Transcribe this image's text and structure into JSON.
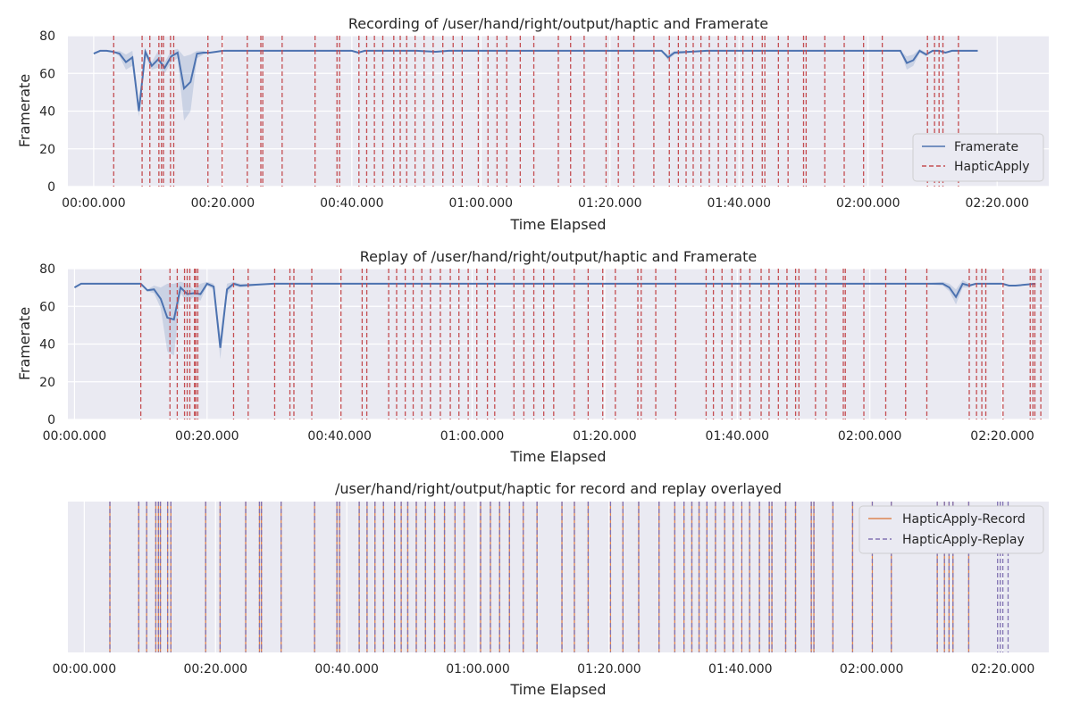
{
  "chart_data": [
    {
      "type": "line",
      "title": "Recording of /user/hand/right/output/haptic and Framerate",
      "xlabel": "Time Elapsed",
      "ylabel": "Framerate",
      "x_unit": "seconds",
      "xlim": [
        -4,
        148
      ],
      "ylim": [
        0,
        80
      ],
      "xticks": [
        0,
        20,
        40,
        60,
        80,
        100,
        120,
        140
      ],
      "xtick_labels": [
        "00:00.000",
        "00:20.000",
        "00:40.000",
        "01:00.000",
        "01:20.000",
        "01:40.000",
        "02:00.000",
        "02:20.000"
      ],
      "yticks": [
        0,
        20,
        40,
        60,
        80
      ],
      "legend": {
        "position": "right",
        "entries": [
          "Framerate",
          "HapticApply"
        ]
      },
      "grid": true,
      "series": [
        {
          "name": "Framerate",
          "color": "#4c72b0",
          "x": [
            0,
            1,
            2,
            3,
            4,
            5,
            6,
            7,
            8,
            9,
            10,
            11,
            12,
            13,
            14,
            15,
            16,
            17,
            18,
            19,
            20,
            21,
            22,
            25,
            30,
            35,
            40,
            41,
            42,
            45,
            50,
            53,
            55,
            60,
            65,
            70,
            75,
            80,
            85,
            88,
            89,
            90,
            95,
            100,
            110,
            120,
            125,
            126,
            127,
            128,
            129,
            130,
            131,
            132,
            133,
            134,
            135,
            136,
            137
          ],
          "y": [
            70.5,
            72,
            72,
            71.5,
            70.5,
            66,
            68.5,
            40,
            71.5,
            64,
            67.5,
            63,
            69,
            71,
            52,
            55.5,
            70.5,
            71,
            71,
            71.5,
            72,
            72,
            72,
            72,
            72,
            72,
            72,
            71,
            72,
            72,
            72,
            71.5,
            72,
            72,
            72,
            72,
            72,
            72,
            72,
            72,
            68.5,
            71,
            72,
            72,
            72,
            72,
            72,
            65.5,
            67,
            72,
            70,
            72,
            72,
            71,
            72,
            72,
            72,
            72,
            72
          ],
          "band_low": [
            70.5,
            72,
            72,
            71.5,
            69,
            62,
            64,
            37,
            69,
            62,
            63,
            60,
            66,
            68,
            35,
            40,
            68,
            70,
            71,
            71.5,
            72,
            72,
            72,
            72,
            72,
            72,
            72,
            71,
            72,
            72,
            72,
            71,
            72,
            72,
            72,
            72,
            72,
            72,
            72,
            72,
            67,
            70,
            72,
            72,
            72,
            72,
            72,
            62,
            64,
            71,
            69,
            72,
            72,
            71,
            72,
            72,
            72,
            72,
            72
          ],
          "band_high": [
            70.5,
            72,
            72,
            71.5,
            72,
            70,
            72,
            43,
            73,
            66,
            72,
            66,
            72,
            73,
            69,
            70,
            72,
            72,
            71,
            71.5,
            72,
            72,
            72,
            72,
            72,
            72,
            72,
            71,
            72,
            72,
            72,
            72,
            72,
            72,
            72,
            72,
            72,
            72,
            72,
            72,
            70,
            72,
            72,
            72,
            72,
            72,
            72,
            69,
            70,
            73,
            71,
            72,
            72,
            71,
            72,
            72,
            72,
            72,
            72
          ]
        },
        {
          "name": "HapticApply",
          "style": "vline-dashed",
          "color": "#c44e52",
          "x": [
            3.1,
            7.5,
            8.7,
            10.1,
            10.5,
            10.8,
            11.9,
            12.4,
            17.7,
            19.9,
            23.8,
            25.9,
            26.2,
            29.2,
            34.3,
            37.7,
            38.1,
            41.1,
            42.3,
            43.5,
            44.8,
            46.5,
            47.5,
            48.5,
            49.8,
            51.2,
            52.6,
            54.1,
            55.7,
            57.1,
            59.6,
            61.1,
            62.5,
            64.0,
            66.1,
            68.2,
            72.0,
            73.9,
            76.0,
            79.4,
            81.3,
            83.7,
            86.8,
            89.2,
            90.6,
            91.8,
            92.9,
            94.1,
            95.4,
            96.8,
            98.1,
            99.4,
            100.6,
            102.1,
            103.6,
            104.0,
            106.1,
            107.6,
            110.0,
            110.4,
            113.3,
            116.3,
            119.3,
            122.2,
            129.2,
            130.3,
            131.0,
            131.6,
            134.0
          ]
        }
      ]
    },
    {
      "type": "line",
      "title": "Replay of /user/hand/right/output/haptic and Framerate",
      "xlabel": "Time Elapsed",
      "ylabel": "Framerate",
      "x_unit": "seconds",
      "xlim": [
        -1,
        147
      ],
      "ylim": [
        0,
        80
      ],
      "xticks": [
        0,
        20,
        40,
        60,
        80,
        100,
        120,
        140
      ],
      "xtick_labels": [
        "00:00.000",
        "00:20.000",
        "00:40.000",
        "01:00.000",
        "01:20.000",
        "01:40.000",
        "02:00.000",
        "02:20.000"
      ],
      "yticks": [
        0,
        20,
        40,
        60,
        80
      ],
      "grid": true,
      "series": [
        {
          "name": "Framerate",
          "color": "#4c72b0",
          "x": [
            0,
            1,
            2,
            3,
            5,
            8,
            9,
            10,
            11,
            12,
            13,
            14,
            15,
            16,
            17,
            18,
            19,
            20,
            21,
            22,
            23,
            24,
            25,
            30,
            35,
            40,
            50,
            60,
            70,
            80,
            90,
            100,
            110,
            120,
            128,
            131,
            132,
            133,
            134,
            135,
            136,
            137,
            138,
            140,
            141,
            142,
            145
          ],
          "y": [
            70,
            72,
            72,
            72,
            72,
            72,
            72,
            72,
            68.5,
            69,
            64,
            54,
            53,
            70,
            66.5,
            67,
            66.5,
            72,
            70.5,
            38,
            69,
            72,
            71,
            72,
            72,
            72,
            72,
            72,
            72,
            72,
            72,
            72,
            72,
            72,
            72,
            72,
            70,
            65,
            72,
            71,
            72,
            72,
            72,
            72,
            71,
            71,
            72
          ],
          "band_low": [
            70,
            72,
            72,
            72,
            72,
            72,
            72,
            72,
            68,
            67,
            59,
            36,
            34,
            67,
            62,
            65,
            63,
            71,
            69,
            32,
            66,
            71,
            70,
            72,
            72,
            72,
            72,
            72,
            72,
            72,
            72,
            72,
            72,
            72,
            72,
            71,
            68,
            61,
            70,
            70,
            72,
            72,
            72,
            72,
            71,
            71,
            72
          ],
          "band_high": [
            70,
            72,
            72,
            72,
            72,
            72,
            72,
            72,
            69,
            71,
            70,
            72,
            72,
            73,
            72,
            69,
            72,
            73,
            72,
            44,
            72,
            73,
            72,
            72,
            72,
            72,
            72,
            72,
            72,
            72,
            72,
            72,
            72,
            72,
            72,
            73,
            72,
            69,
            74,
            72,
            72,
            72,
            72,
            72,
            71,
            71,
            72
          ]
        },
        {
          "name": "HapticApply",
          "style": "vline-dashed",
          "color": "#c44e52",
          "x": [
            10.0,
            14.4,
            15.5,
            16.6,
            17.0,
            17.4,
            18.1,
            18.3,
            18.6,
            24.0,
            26.2,
            30.2,
            32.5,
            33.1,
            35.8,
            40.2,
            43.4,
            44.1,
            47.4,
            48.6,
            49.9,
            51.1,
            52.4,
            53.7,
            55.2,
            56.7,
            58.0,
            59.4,
            60.7,
            62.3,
            63.4,
            66.3,
            67.8,
            69.3,
            70.8,
            72.3,
            75.4,
            77.5,
            79.7,
            81.6,
            85.0,
            85.5,
            87.7,
            90.7,
            95.3,
            96.4,
            97.7,
            99.2,
            100.5,
            101.9,
            103.6,
            104.8,
            106.2,
            107.5,
            108.8,
            109.3,
            111.8,
            113.4,
            116.0,
            116.3,
            119.1,
            122.4,
            125.4,
            128.6,
            135.0,
            136.1,
            136.9,
            137.5,
            140.1,
            144.2,
            144.6,
            144.9,
            145.8
          ]
        }
      ]
    },
    {
      "type": "line",
      "title": "/user/hand/right/output/haptic for record and replay overlayed",
      "xlabel": "Time Elapsed",
      "x_unit": "seconds",
      "xlim": [
        -2.5,
        147
      ],
      "xticks": [
        0,
        20,
        40,
        60,
        80,
        100,
        120,
        140
      ],
      "xtick_labels": [
        "00:00.000",
        "00:20.000",
        "00:40.000",
        "01:00.000",
        "01:20.000",
        "01:40.000",
        "02:00.000",
        "02:20.000"
      ],
      "grid": true,
      "legend": {
        "position": "top-right",
        "entries": [
          "HapticApply-Record",
          "HapticApply-Replay"
        ]
      },
      "series": [
        {
          "name": "HapticApply-Record",
          "style": "vline-solid",
          "color": "#dd8452",
          "x": [
            3.9,
            8.3,
            9.5,
            10.9,
            11.3,
            11.6,
            12.7,
            13.2,
            18.5,
            20.7,
            24.6,
            26.7,
            27.0,
            30.0,
            35.1,
            38.5,
            38.9,
            41.9,
            43.1,
            44.3,
            45.6,
            47.3,
            48.3,
            49.3,
            50.6,
            52.0,
            53.4,
            54.9,
            56.5,
            57.9,
            60.4,
            61.9,
            63.3,
            64.8,
            66.9,
            69.0,
            72.8,
            74.7,
            76.8,
            80.2,
            82.1,
            84.5,
            87.6,
            90.0,
            91.4,
            92.6,
            93.7,
            94.9,
            96.2,
            97.6,
            98.9,
            100.2,
            101.4,
            102.9,
            104.4,
            104.8,
            106.9,
            108.4,
            110.8,
            111.2,
            114.1,
            117.1,
            120.1,
            123.0,
            130.0,
            131.1,
            131.8,
            132.4,
            134.8
          ]
        },
        {
          "name": "HapticApply-Replay",
          "style": "vline-dashed",
          "color": "#8172b2",
          "x": [
            3.9,
            8.3,
            9.5,
            10.9,
            11.3,
            11.6,
            12.7,
            13.2,
            18.5,
            20.7,
            24.6,
            26.7,
            27.0,
            30.0,
            35.1,
            38.5,
            38.9,
            41.9,
            43.1,
            44.3,
            45.6,
            47.3,
            48.3,
            49.3,
            50.6,
            52.0,
            53.4,
            54.9,
            56.5,
            57.9,
            60.4,
            61.9,
            63.3,
            64.8,
            66.9,
            69.0,
            72.8,
            74.7,
            76.8,
            80.2,
            82.1,
            84.5,
            87.6,
            90.0,
            91.4,
            92.6,
            93.7,
            94.9,
            96.2,
            97.6,
            98.9,
            100.2,
            101.4,
            102.9,
            104.4,
            104.8,
            106.9,
            108.4,
            110.8,
            111.2,
            114.1,
            117.1,
            120.1,
            123.0,
            130.0,
            131.1,
            131.8,
            132.4,
            134.8,
            139.2,
            139.6,
            140.0,
            140.8
          ]
        }
      ]
    }
  ]
}
